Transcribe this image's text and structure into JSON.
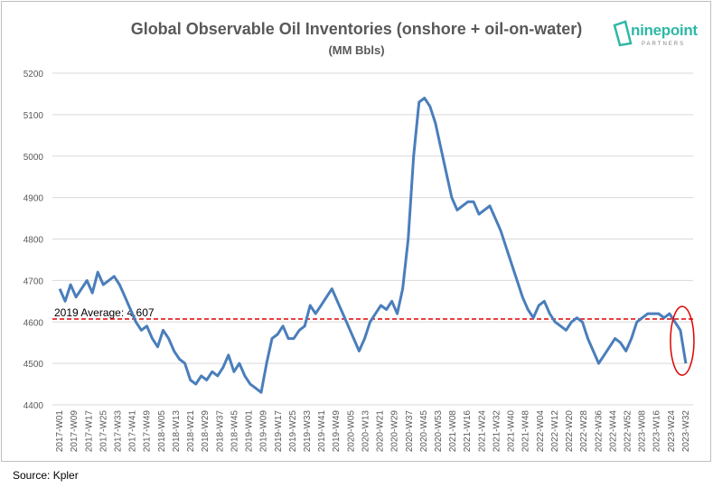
{
  "chart_data": {
    "type": "line",
    "title": "Global Observable Oil Inventories (onshore + oil-on-water)",
    "subtitle": "(MM Bbls)",
    "ylim": [
      4400,
      5200
    ],
    "yticks": [
      4400,
      4500,
      4600,
      4700,
      4800,
      4900,
      5000,
      5100,
      5200
    ],
    "grid": true,
    "line_color": "#4a7ebb",
    "x_tick_labels": [
      "2017-W01",
      "2017-W09",
      "2017-W17",
      "2017-W25",
      "2017-W33",
      "2017-W41",
      "2017-W49",
      "2018-W05",
      "2018-W13",
      "2018-W21",
      "2018-W29",
      "2018-W37",
      "2018-W45",
      "2019-W01",
      "2019-W09",
      "2019-W17",
      "2019-W25",
      "2019-W33",
      "2019-W41",
      "2019-W49",
      "2020-W05",
      "2020-W13",
      "2020-W21",
      "2020-W29",
      "2020-W37",
      "2020-W45",
      "2020-W53",
      "2021-W08",
      "2021-W16",
      "2021-W24",
      "2021-W32",
      "2021-W40",
      "2021-W48",
      "2022-W04",
      "2022-W12",
      "2022-W20",
      "2022-W28",
      "2022-W36",
      "2022-W44",
      "2022-W52",
      "2023-W08",
      "2023-W16",
      "2023-W24",
      "2023-W32"
    ],
    "series": [
      {
        "values": [
          4680,
          4650,
          4690,
          4660,
          4680,
          4700,
          4670,
          4720,
          4690,
          4700,
          4710,
          4690,
          4660,
          4630,
          4600,
          4580,
          4590,
          4560,
          4540,
          4580,
          4560,
          4530,
          4510,
          4500,
          4460,
          4450,
          4470,
          4460,
          4480,
          4470,
          4490,
          4520,
          4480,
          4500,
          4470,
          4450,
          4440,
          4430,
          4500,
          4560,
          4570,
          4590,
          4560,
          4560,
          4580,
          4590,
          4640,
          4620,
          4640,
          4660,
          4680,
          4650,
          4620,
          4590,
          4560,
          4530,
          4560,
          4600,
          4620,
          4640,
          4630,
          4650,
          4620,
          4680,
          4800,
          5000,
          5130,
          5140,
          5120,
          5080,
          5020,
          4960,
          4900,
          4870,
          4880,
          4890,
          4890,
          4860,
          4870,
          4880,
          4850,
          4820,
          4780,
          4740,
          4700,
          4660,
          4630,
          4610,
          4640,
          4650,
          4620,
          4600,
          4590,
          4580,
          4600,
          4610,
          4600,
          4560,
          4530,
          4500,
          4520,
          4540,
          4560,
          4550,
          4530,
          4560,
          4600,
          4610,
          4620,
          4620,
          4620,
          4610,
          4620,
          4600,
          4580,
          4500
        ],
        "x_index_range": [
          0,
          43
        ]
      }
    ],
    "annotations": [
      {
        "text": "2019 Average: 4,607",
        "value": 4607,
        "style": "dashed",
        "color": "#e00000"
      }
    ],
    "highlight": {
      "shape": "ellipse",
      "color": "#e00000",
      "around": "last values"
    }
  },
  "logo": {
    "text": "ninepoint",
    "sub": "PARTNERS"
  },
  "source": "Source: Kpler"
}
